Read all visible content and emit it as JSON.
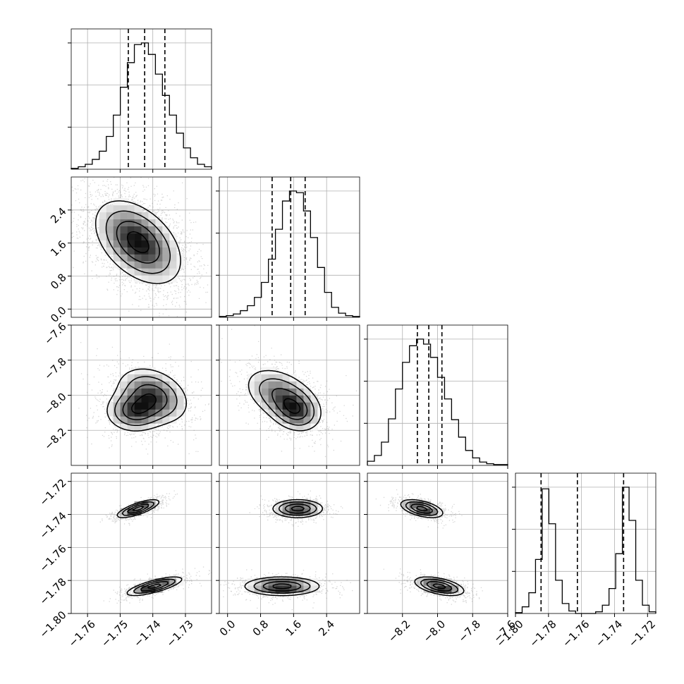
{
  "chart_data": {
    "type": "corner",
    "grid": true,
    "parameters": [
      {
        "index": 0,
        "range": [
          -1.765,
          -1.722
        ],
        "ticks": [
          -1.76,
          -1.75,
          -1.74,
          -1.73
        ],
        "tick_labels": [
          "−1.76",
          "−1.75",
          "−1.74",
          "−1.73"
        ],
        "quantiles": [
          -1.7475,
          -1.7425,
          -1.7363
        ]
      },
      {
        "index": 1,
        "range": [
          -0.2,
          3.2
        ],
        "ticks": [
          0.0,
          0.8,
          1.6,
          2.4
        ],
        "tick_labels": [
          "0.0",
          "0.8",
          "1.6",
          "2.4"
        ],
        "quantiles": [
          1.08,
          1.53,
          1.88
        ]
      },
      {
        "index": 2,
        "range": [
          -8.4,
          -7.6
        ],
        "ticks": [
          -8.2,
          -8.0,
          -7.8,
          -7.6
        ],
        "tick_labels": [
          "−8.2",
          "−8.0",
          "−7.8",
          "−7.6"
        ],
        "quantiles": [
          -8.115,
          -8.05,
          -7.975
        ]
      },
      {
        "index": 3,
        "range": [
          -1.8,
          -1.715
        ],
        "ticks": [
          -1.8,
          -1.78,
          -1.76,
          -1.74,
          -1.72
        ],
        "tick_labels": [
          "−1.80",
          "−1.78",
          "−1.76",
          "−1.74",
          "−1.72"
        ],
        "quantiles": [
          -1.7845,
          -1.7625,
          -1.7345
        ]
      }
    ],
    "histograms": [
      {
        "param": 0,
        "x0": -1.765,
        "x1": -1.722,
        "counts": [
          1,
          3,
          6,
          12,
          22,
          40,
          66,
          100,
          130,
          152,
          154,
          140,
          116,
          90,
          66,
          44,
          26,
          14,
          6,
          3
        ]
      },
      {
        "param": 1,
        "x0": -0.2,
        "x1": 3.2,
        "counts": [
          1,
          2,
          4,
          8,
          14,
          24,
          42,
          70,
          106,
          140,
          152,
          150,
          128,
          96,
          60,
          30,
          12,
          5,
          2,
          1
        ]
      },
      {
        "param": 2,
        "x0": -8.4,
        "x1": -7.6,
        "counts": [
          5,
          12,
          28,
          56,
          92,
          124,
          144,
          152,
          146,
          130,
          106,
          80,
          55,
          34,
          18,
          9,
          4,
          2,
          1,
          1
        ]
      },
      {
        "param": 3,
        "x0": -1.8,
        "x1": -1.715,
        "counts": [
          1,
          8,
          25,
          65,
          150,
          108,
          40,
          12,
          3,
          0,
          0,
          0,
          2,
          10,
          30,
          72,
          152,
          112,
          40,
          10,
          2
        ]
      }
    ],
    "density_modes": [
      {
        "x": 0,
        "y": 1,
        "modes": [
          {
            "mx": -1.7445,
            "my": 1.62,
            "sx": 0.0065,
            "sy": 0.5,
            "rho": -0.45,
            "w": 1.0
          }
        ]
      },
      {
        "x": 0,
        "y": 2,
        "modes": [
          {
            "mx": -1.7455,
            "my": -8.09,
            "sx": 0.0045,
            "sy": 0.06,
            "rho": 0.0,
            "w": 0.5
          },
          {
            "mx": -1.74,
            "my": -8.0,
            "sx": 0.0055,
            "sy": 0.08,
            "rho": -0.3,
            "w": 0.5
          }
        ]
      },
      {
        "x": 0,
        "y": 3,
        "modes": [
          {
            "mx": -1.7445,
            "my": -1.7365,
            "sx": 0.0032,
            "sy": 0.0027,
            "rho": 0.75,
            "w": 0.5
          },
          {
            "mx": -1.7395,
            "my": -1.7835,
            "sx": 0.0042,
            "sy": 0.0028,
            "rho": 0.75,
            "w": 0.5
          }
        ]
      },
      {
        "x": 1,
        "y": 2,
        "modes": [
          {
            "mx": 1.65,
            "my": -8.09,
            "sx": 0.3,
            "sy": 0.06,
            "rho": -0.2,
            "w": 0.5
          },
          {
            "mx": 1.3,
            "my": -8.0,
            "sx": 0.45,
            "sy": 0.08,
            "rho": -0.4,
            "w": 0.5
          }
        ]
      },
      {
        "x": 1,
        "y": 3,
        "modes": [
          {
            "mx": 1.7,
            "my": -1.7365,
            "sx": 0.3,
            "sy": 0.0027,
            "rho": 0.0,
            "w": 0.5
          },
          {
            "mx": 1.32,
            "my": -1.7835,
            "sx": 0.45,
            "sy": 0.0028,
            "rho": 0.0,
            "w": 0.5
          }
        ]
      },
      {
        "x": 2,
        "y": 3,
        "modes": [
          {
            "mx": -8.09,
            "my": -1.7365,
            "sx": 0.06,
            "sy": 0.0027,
            "rho": -0.5,
            "w": 0.5
          },
          {
            "mx": -7.99,
            "my": -1.7835,
            "sx": 0.07,
            "sy": 0.0028,
            "rho": -0.5,
            "w": 0.5
          }
        ]
      }
    ]
  }
}
